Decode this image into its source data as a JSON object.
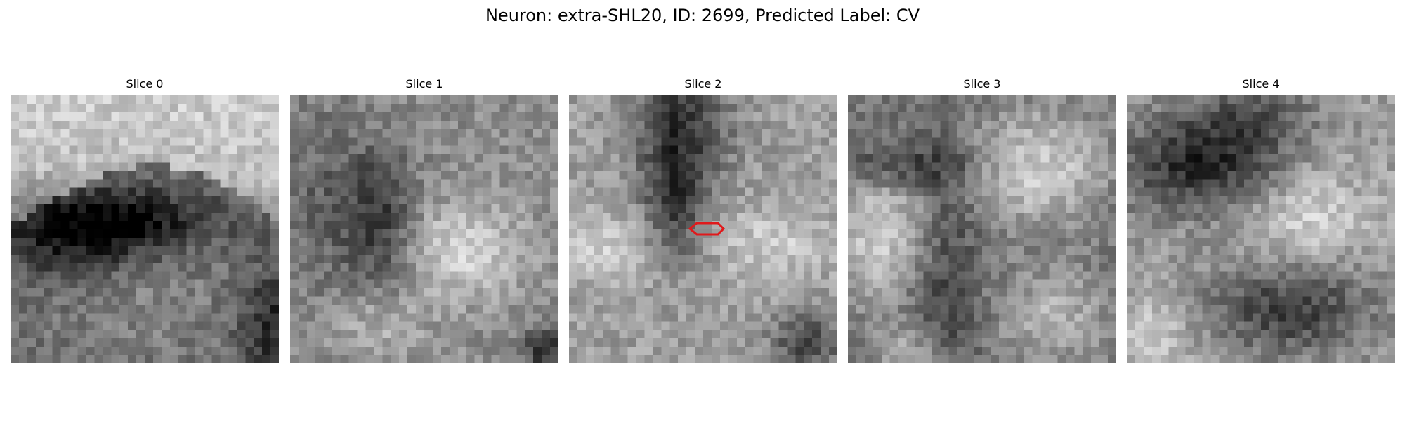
{
  "figure": {
    "title": "Neuron: extra-SHL20, ID: 2699, Predicted Label: CV"
  },
  "panels": [
    {
      "title": "Slice 0",
      "pattern": "bright-top-dark-band"
    },
    {
      "title": "Slice 1",
      "pattern": "noisy-dark-left-bright-right"
    },
    {
      "title": "Slice 2",
      "pattern": "dark-top-cleft-with-roi",
      "roi": true
    },
    {
      "title": "Slice 3",
      "pattern": "bright-blobs-dark-cross"
    },
    {
      "title": "Slice 4",
      "pattern": "dark-top-band-dark-bottom-blob"
    }
  ],
  "colors": {
    "roi_outline": "#e0191b",
    "background": "#ffffff"
  }
}
